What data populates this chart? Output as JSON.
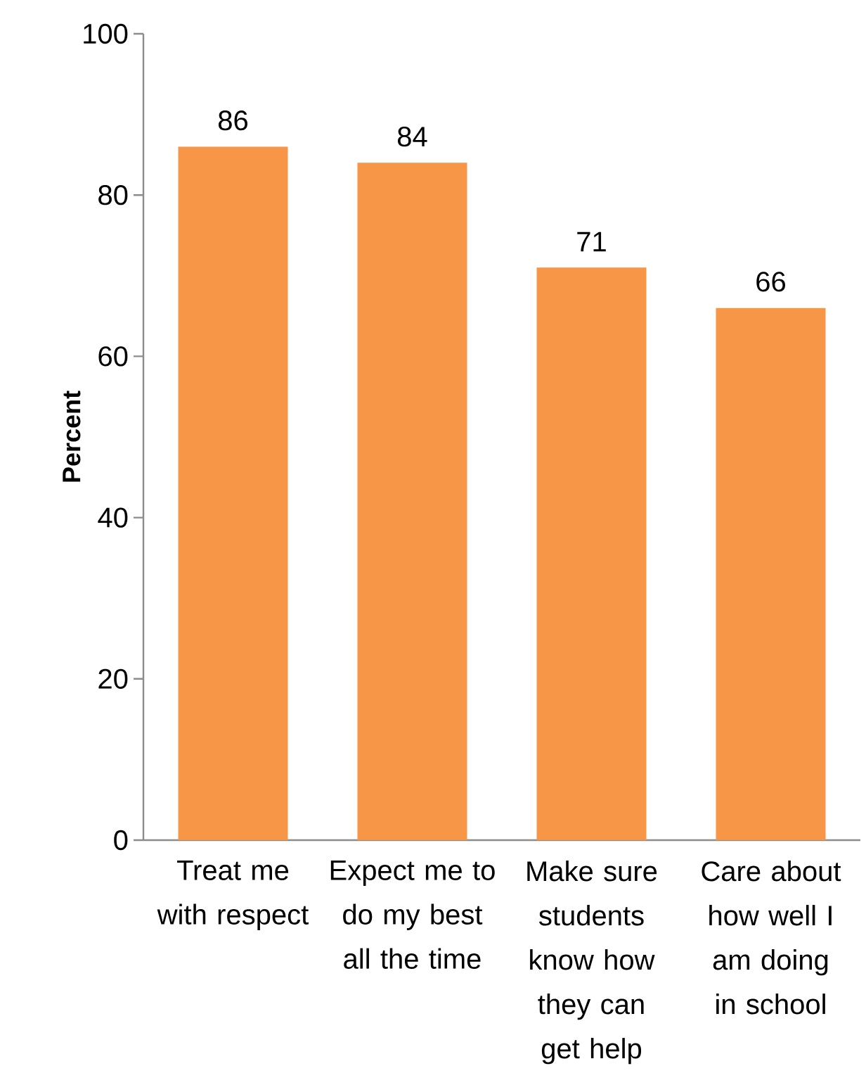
{
  "chart_data": {
    "type": "bar",
    "ylabel": "Percent",
    "categories": [
      "Treat me with respect",
      "Expect me to do my best all the time",
      "Make sure students know how they can get help",
      "Care about how well I am doing in school"
    ],
    "values": [
      86,
      84,
      71,
      66
    ],
    "color": "#f79646",
    "data_labels": true,
    "ylim": [
      0,
      100
    ],
    "yticks": [
      0,
      20,
      40,
      60,
      80,
      100
    ]
  }
}
